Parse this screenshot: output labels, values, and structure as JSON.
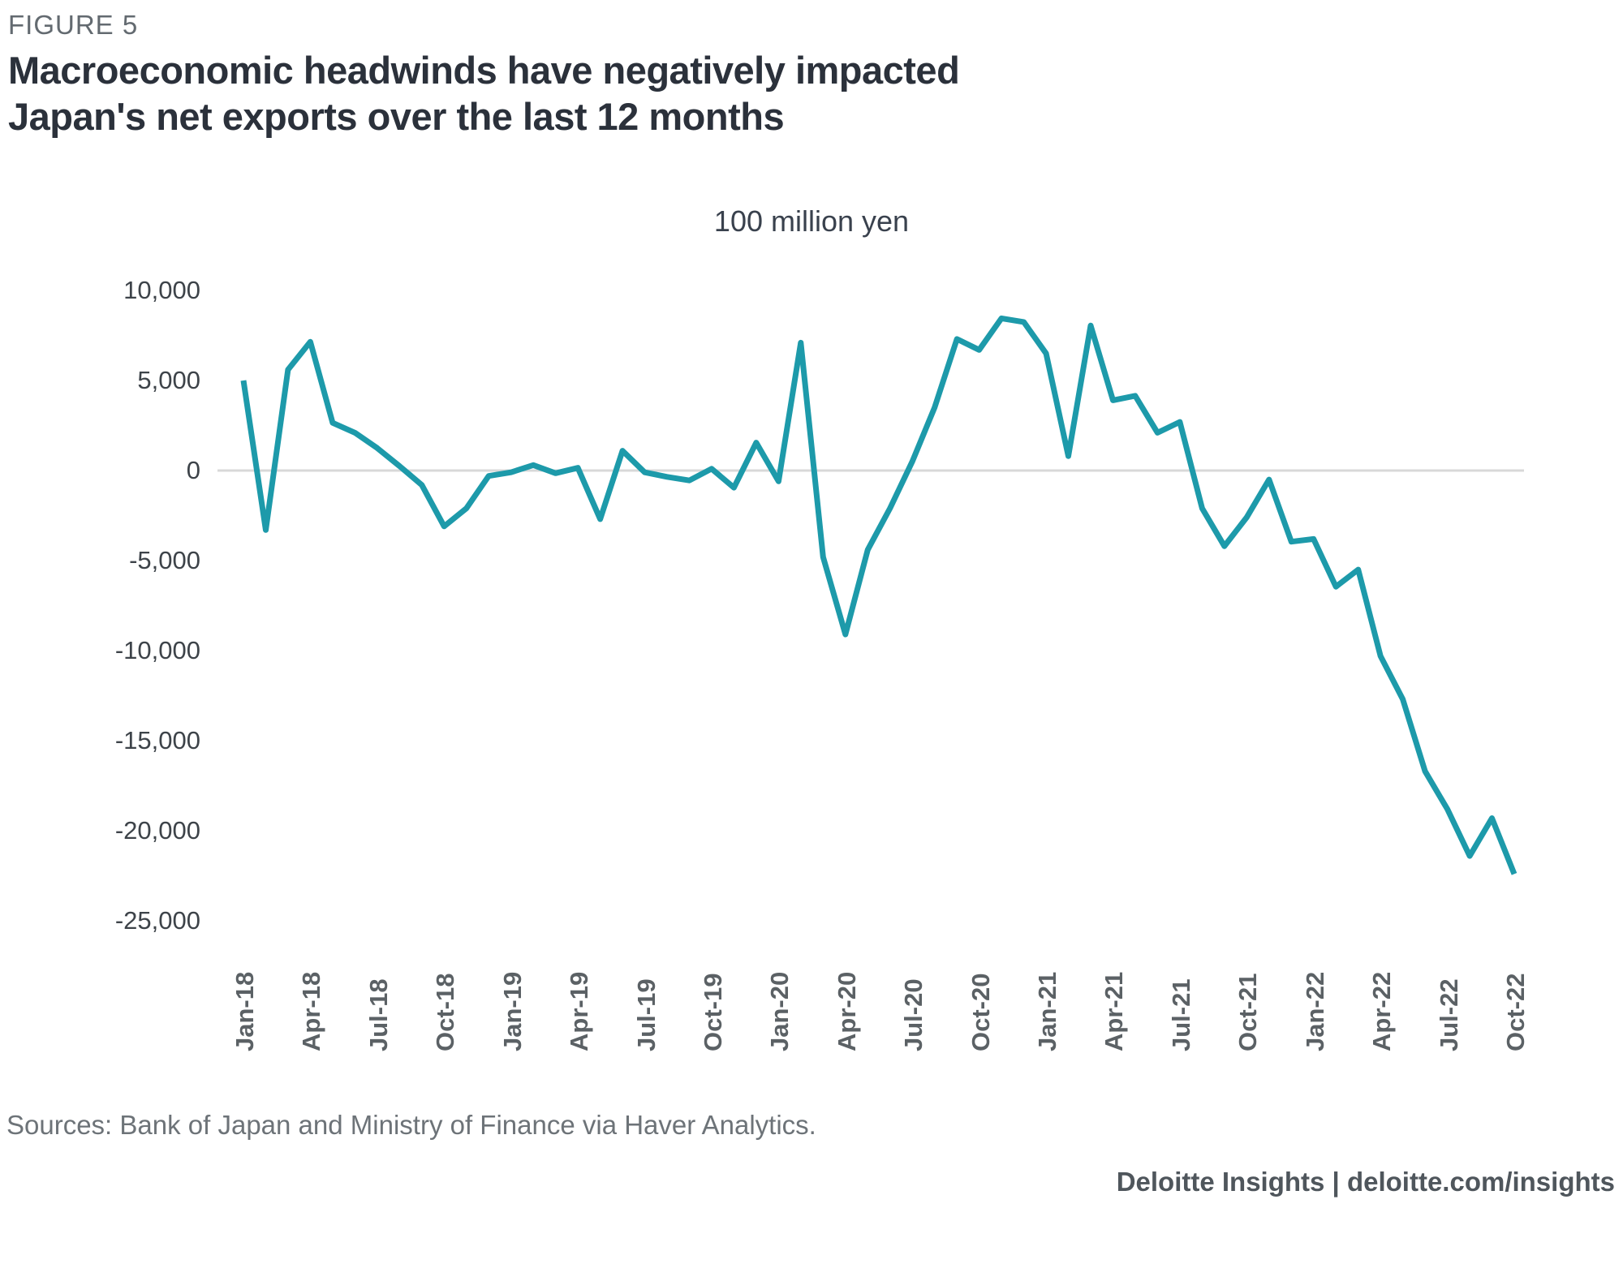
{
  "figure_label": "FIGURE 5",
  "title": "Macroeconomic headwinds have negatively impacted Japan's net exports over the last 12 months",
  "sources_note": "Sources: Bank of Japan and Ministry of Finance via Haver Analytics.",
  "footer_text": "Deloitte Insights | deloitte.com/insights",
  "colors": {
    "line": "#1D9AAA",
    "zero_gridline": "#d8d8d8",
    "title_text": "#2b313b",
    "axis_text": "#3d4349",
    "xaxis_text": "#5b6165",
    "muted_text": "#6d7378"
  },
  "chart_data": {
    "type": "line",
    "title": "100 million yen",
    "legend": "none",
    "grid": "zero-line-only",
    "ylim": [
      -25000,
      10000
    ],
    "y_tick_values": [
      10000,
      5000,
      0,
      -5000,
      -10000,
      -15000,
      -20000,
      -25000
    ],
    "y_tick_labels": [
      "10,000",
      "5,000",
      "0",
      "-5,000",
      "-10,000",
      "-15,000",
      "-20,000",
      "-25,000"
    ],
    "x_tick_every": 3,
    "x": [
      "Jan-18",
      "Feb-18",
      "Mar-18",
      "Apr-18",
      "May-18",
      "Jun-18",
      "Jul-18",
      "Aug-18",
      "Sep-18",
      "Oct-18",
      "Nov-18",
      "Dec-18",
      "Jan-19",
      "Feb-19",
      "Mar-19",
      "Apr-19",
      "May-19",
      "Jun-19",
      "Jul-19",
      "Aug-19",
      "Sep-19",
      "Oct-19",
      "Nov-19",
      "Dec-19",
      "Jan-20",
      "Feb-20",
      "Mar-20",
      "Apr-20",
      "May-20",
      "Jun-20",
      "Jul-20",
      "Aug-20",
      "Sep-20",
      "Oct-20",
      "Nov-20",
      "Dec-20",
      "Jan-21",
      "Feb-21",
      "Mar-21",
      "Apr-21",
      "May-21",
      "Jun-21",
      "Jul-21",
      "Aug-21",
      "Sep-21",
      "Oct-21",
      "Nov-21",
      "Dec-21",
      "Jan-22",
      "Feb-22",
      "Mar-22",
      "Apr-22",
      "May-22",
      "Jun-22",
      "Jul-22",
      "Aug-22",
      "Sep-22",
      "Oct-22"
    ],
    "series": [
      {
        "name": "Japan net exports (100 million yen)",
        "color": "#1D9AAA",
        "values": [
          5000,
          -3300,
          5600,
          7150,
          2650,
          2100,
          1250,
          250,
          -800,
          -3100,
          -2100,
          -300,
          -100,
          300,
          -150,
          150,
          -2700,
          1100,
          -100,
          -350,
          -550,
          100,
          -950,
          1550,
          -600,
          7100,
          -4800,
          -9100,
          -4400,
          -2100,
          500,
          3500,
          7300,
          6700,
          8450,
          8250,
          6500,
          800,
          8050,
          3900,
          4150,
          2100,
          2700,
          -2100,
          -4200,
          -2600,
          -500,
          -3950,
          -3800,
          -6450,
          -5500,
          -10300,
          -12700,
          -16700,
          -18800,
          -21400,
          -19300,
          -22400
        ]
      }
    ]
  }
}
